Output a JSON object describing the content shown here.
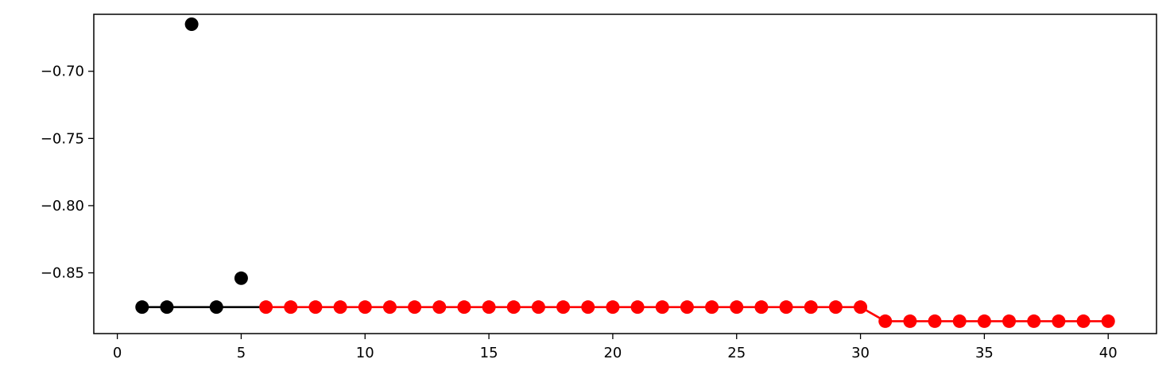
{
  "chart_data": {
    "type": "scatter",
    "title": "",
    "xlabel": "",
    "ylabel": "",
    "xlim": [
      -0.95,
      41.95
    ],
    "ylim": [
      -0.8952,
      -0.6576
    ],
    "grid": false,
    "legend": "none",
    "x_ticks": [
      0,
      5,
      10,
      15,
      20,
      25,
      30,
      35,
      40
    ],
    "x_tick_labels": [
      "0",
      "5",
      "10",
      "15",
      "20",
      "25",
      "30",
      "35",
      "40"
    ],
    "y_ticks": [
      -0.7,
      -0.75,
      -0.8,
      -0.85
    ],
    "y_tick_labels": [
      "−0.70",
      "−0.75",
      "−0.80",
      "−0.85"
    ],
    "points": {
      "x": [
        1,
        2,
        3,
        4,
        5,
        6,
        7,
        8,
        9,
        10,
        11,
        12,
        13,
        14,
        15,
        16,
        17,
        18,
        19,
        20,
        21,
        22,
        23,
        24,
        25,
        26,
        27,
        28,
        29,
        30,
        31,
        32,
        33,
        34,
        35,
        36,
        37,
        38,
        39,
        40
      ],
      "y": [
        -0.8755,
        -0.8755,
        -0.665,
        -0.8755,
        -0.854,
        -0.8755,
        -0.8755,
        -0.8755,
        -0.8755,
        -0.8755,
        -0.8755,
        -0.8755,
        -0.8755,
        -0.8755,
        -0.8755,
        -0.8755,
        -0.8755,
        -0.8755,
        -0.8755,
        -0.8755,
        -0.8755,
        -0.8755,
        -0.8755,
        -0.8755,
        -0.8755,
        -0.8755,
        -0.8755,
        -0.8755,
        -0.8755,
        -0.8755,
        -0.886,
        -0.886,
        -0.886,
        -0.886,
        -0.886,
        -0.886,
        -0.886,
        -0.886,
        -0.886,
        -0.886
      ],
      "colors": [
        "#000000",
        "#000000",
        "#000000",
        "#000000",
        "#000000",
        "#ff0000",
        "#ff0000",
        "#ff0000",
        "#ff0000",
        "#ff0000",
        "#ff0000",
        "#ff0000",
        "#ff0000",
        "#ff0000",
        "#ff0000",
        "#ff0000",
        "#ff0000",
        "#ff0000",
        "#ff0000",
        "#ff0000",
        "#ff0000",
        "#ff0000",
        "#ff0000",
        "#ff0000",
        "#ff0000",
        "#ff0000",
        "#ff0000",
        "#ff0000",
        "#ff0000",
        "#ff0000",
        "#ff0000",
        "#ff0000",
        "#ff0000",
        "#ff0000",
        "#ff0000",
        "#ff0000",
        "#ff0000",
        "#ff0000",
        "#ff0000",
        "#ff0000"
      ]
    },
    "lines": [
      {
        "color": "#000000",
        "x": [
          1,
          2,
          3,
          4,
          5,
          6
        ],
        "y": [
          -0.8755,
          -0.8755,
          -0.8755,
          -0.8755,
          -0.8755,
          -0.8755
        ]
      },
      {
        "color": "#ff0000",
        "x": [
          6,
          7,
          8,
          9,
          10,
          11,
          12,
          13,
          14,
          15,
          16,
          17,
          18,
          19,
          20,
          21,
          22,
          23,
          24,
          25,
          26,
          27,
          28,
          29,
          30,
          31,
          32,
          33,
          34,
          35,
          36,
          37,
          38,
          39,
          40
        ],
        "y": [
          -0.8755,
          -0.8755,
          -0.8755,
          -0.8755,
          -0.8755,
          -0.8755,
          -0.8755,
          -0.8755,
          -0.8755,
          -0.8755,
          -0.8755,
          -0.8755,
          -0.8755,
          -0.8755,
          -0.8755,
          -0.8755,
          -0.8755,
          -0.8755,
          -0.8755,
          -0.8755,
          -0.8755,
          -0.8755,
          -0.8755,
          -0.8755,
          -0.8755,
          -0.886,
          -0.886,
          -0.886,
          -0.886,
          -0.886,
          -0.886,
          -0.886,
          -0.886,
          -0.886,
          -0.886
        ]
      }
    ]
  }
}
